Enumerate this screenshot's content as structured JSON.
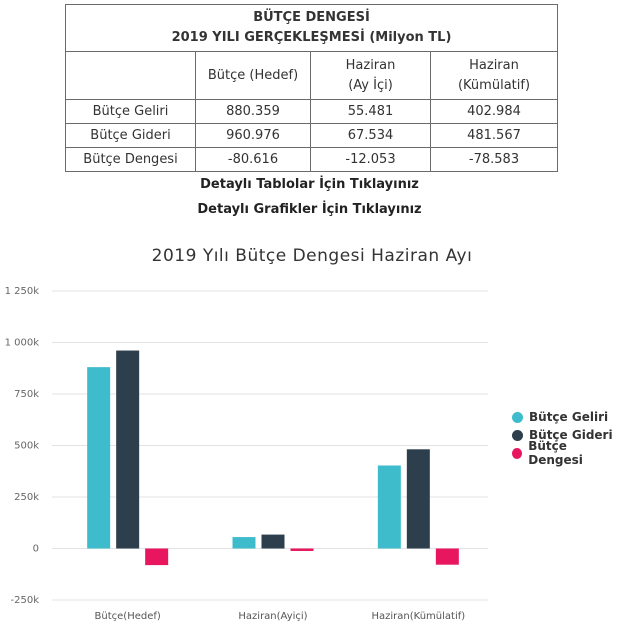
{
  "table": {
    "title_line1": "BÜTÇE DENGESİ",
    "title_line2": "2019 YILI GERÇEKLEŞMESİ (Milyon TL)",
    "headers": [
      {
        "line1": "",
        "line2": ""
      },
      {
        "line1": "Bütçe (Hedef)",
        "line2": ""
      },
      {
        "line1": "Haziran",
        "line2": "(Ay İçi)"
      },
      {
        "line1": "Haziran",
        "line2": "(Kümülatif)"
      }
    ],
    "rows": [
      {
        "label": "Bütçe Geliri",
        "values": [
          "880.359",
          "55.481",
          "402.984"
        ]
      },
      {
        "label": "Bütçe Gideri",
        "values": [
          "960.976",
          "67.534",
          "481.567"
        ]
      },
      {
        "label": "Bütçe Dengesi",
        "values": [
          "-80.616",
          "-12.053",
          "-78.583"
        ]
      }
    ]
  },
  "links": {
    "tables": "Detaylı Tablolar İçin Tıklayınız",
    "charts": "Detaylı Grafikler İçin Tıklayınız"
  },
  "chart_data": {
    "type": "bar",
    "title": "2019 Yılı Bütçe Dengesi Haziran Ayı",
    "categories": [
      "Bütçe(Hedef)",
      "Haziran(Ayiçi)",
      "Haziran(Kümülatif)"
    ],
    "series": [
      {
        "name": "Bütçe Geliri",
        "color": "#3ebccb",
        "values": [
          880359,
          55481,
          402984
        ]
      },
      {
        "name": "Bütçe Gideri",
        "color": "#2d3e4c",
        "values": [
          960976,
          67534,
          481567
        ]
      },
      {
        "name": "Bütçe Dengesi",
        "color": "#e8165f",
        "values": [
          -80616,
          -12053,
          -78583
        ]
      }
    ],
    "ylim": [
      -250000,
      1250000
    ],
    "yticks": [
      -250000,
      0,
      250000,
      500000,
      750000,
      1000000,
      1250000
    ],
    "ytick_labels": [
      "-250k",
      "0",
      "250k",
      "500k",
      "750k",
      "1 000k",
      "1 250k"
    ],
    "grid": true,
    "legend_position": "right"
  }
}
